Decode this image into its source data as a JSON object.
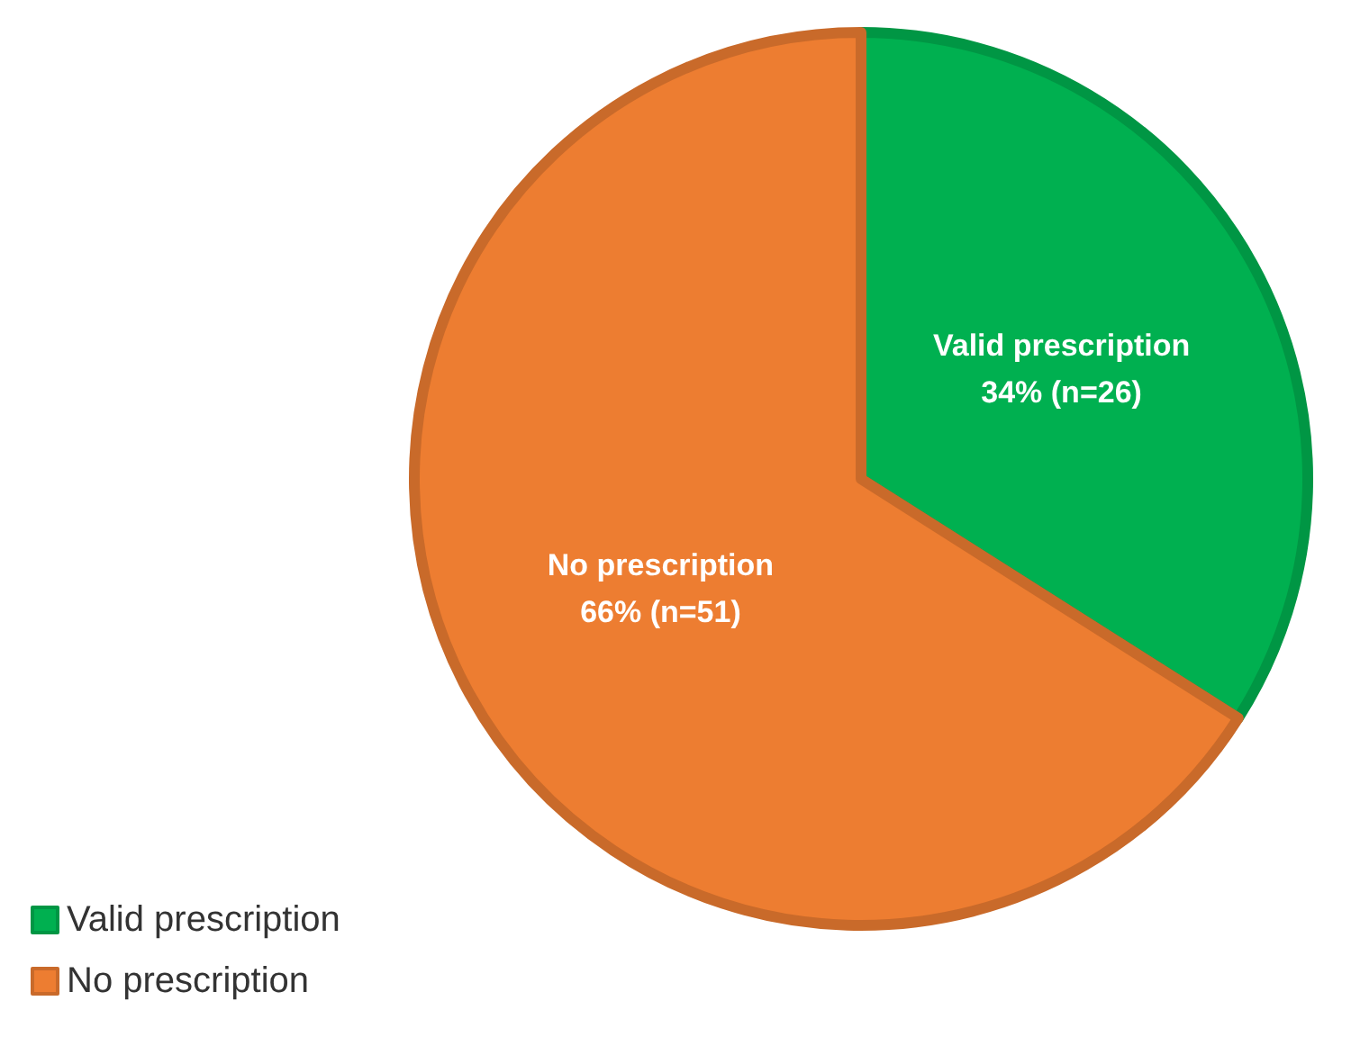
{
  "chart_data": {
    "type": "pie",
    "categories": [
      "Valid prescription",
      "No prescription"
    ],
    "values": [
      34,
      66
    ],
    "value_labels": [
      "34% (n=26)",
      "66% (n=51)"
    ],
    "colors": [
      "#00b050",
      "#ed7d31"
    ],
    "legend": "bottom left"
  }
}
